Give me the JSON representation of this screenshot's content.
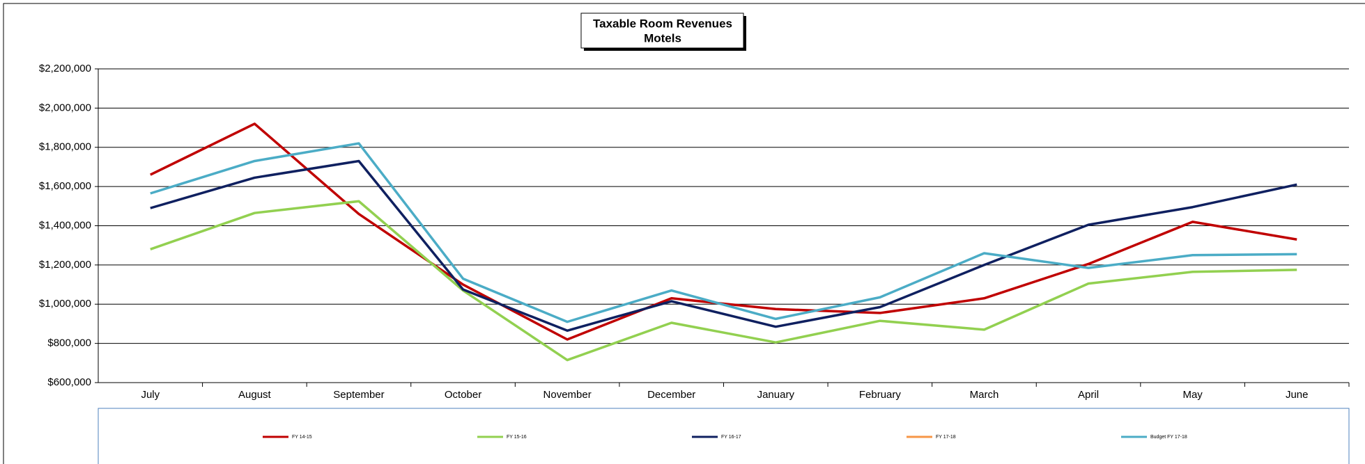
{
  "chart_data": {
    "type": "line",
    "title": "Taxable Room Revenues",
    "subtitle": "Motels",
    "categories": [
      "July",
      "August",
      "September",
      "October",
      "November",
      "December",
      "January",
      "February",
      "March",
      "April",
      "May",
      "June"
    ],
    "series": [
      {
        "name": "FY 14-15",
        "color": "#c00000",
        "values": [
          1660000,
          1920000,
          1460000,
          1100000,
          820000,
          1030000,
          975000,
          955000,
          1030000,
          1205000,
          1420000,
          1330000
        ]
      },
      {
        "name": "FY 15-16",
        "color": "#92d050",
        "values": [
          1280000,
          1465000,
          1525000,
          1070000,
          715000,
          905000,
          805000,
          915000,
          870000,
          1105000,
          1165000,
          1175000
        ]
      },
      {
        "name": "FY 16-17",
        "color": "#0f2060",
        "values": [
          1490000,
          1645000,
          1730000,
          1075000,
          865000,
          1015000,
          885000,
          985000,
          1200000,
          1405000,
          1495000,
          1610000
        ]
      },
      {
        "name": "FY 17-18",
        "color": "#f79646",
        "values": [
          null,
          null,
          null,
          null,
          null,
          null,
          null,
          null,
          null,
          null,
          null,
          null
        ]
      },
      {
        "name": "Budget FY 17-18",
        "color": "#4bacc6",
        "values": [
          1565000,
          1730000,
          1820000,
          1130000,
          910000,
          1070000,
          925000,
          1035000,
          1260000,
          1185000,
          1250000,
          1255000
        ]
      }
    ],
    "ylim": [
      600000,
      2200000
    ],
    "yticks": [
      {
        "value": 600000,
        "label": "$600,000"
      },
      {
        "value": 800000,
        "label": "$800,000"
      },
      {
        "value": 1000000,
        "label": "$1,000,000"
      },
      {
        "value": 1200000,
        "label": "$1,200,000"
      },
      {
        "value": 1400000,
        "label": "$1,400,000"
      },
      {
        "value": 1600000,
        "label": "$1,600,000"
      },
      {
        "value": 1800000,
        "label": "$1,800,000"
      },
      {
        "value": 2000000,
        "label": "$2,000,000"
      },
      {
        "value": 2200000,
        "label": "$2,200,000"
      }
    ],
    "grid": true,
    "legend": "bottom"
  }
}
